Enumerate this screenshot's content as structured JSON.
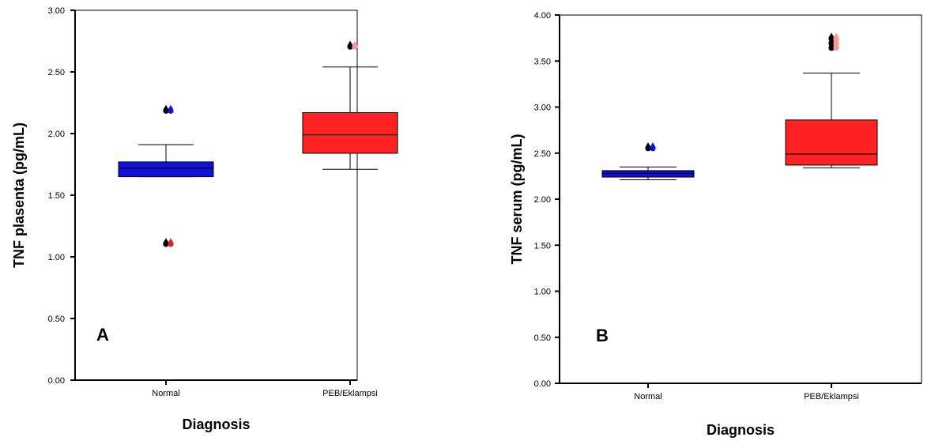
{
  "chart_data": [
    {
      "type": "box",
      "panel_label": "A",
      "ylabel": "TNF plasenta (pg/mL)",
      "xlabel": "Diagnosis",
      "ylim": [
        0,
        3
      ],
      "yticks": [
        0,
        0.5,
        1,
        1.5,
        2,
        2.5,
        3
      ],
      "ytick_labels": [
        "0.00",
        "0.50",
        "1.00",
        "1.50",
        "2.00",
        "2.50",
        "3.00"
      ],
      "categories": [
        "Normal",
        "PEB/Eklampsi"
      ],
      "boxes": [
        {
          "category": "Normal",
          "color": "#1111dd",
          "whisker_low": 1.65,
          "q1": 1.65,
          "median": 1.72,
          "q3": 1.77,
          "whisker_high": 1.91,
          "outliers": [
            2.19,
            1.11
          ]
        },
        {
          "category": "PEB/Eklampsi",
          "color": "#ff2222",
          "whisker_low": 1.71,
          "q1": 1.84,
          "median": 1.99,
          "q3": 2.17,
          "whisker_high": 2.54,
          "outliers": [
            2.71
          ]
        }
      ]
    },
    {
      "type": "box",
      "panel_label": "B",
      "ylabel": "TNF serum (pg/mL)",
      "xlabel": "Diagnosis",
      "ylim": [
        0,
        4
      ],
      "yticks": [
        0,
        0.5,
        1,
        1.5,
        2,
        2.5,
        3,
        3.5,
        4
      ],
      "ytick_labels": [
        "0.00",
        "0.50",
        "1.00",
        "1.50",
        "2.00",
        "2.50",
        "3.00",
        "3.50",
        "4.00"
      ],
      "categories": [
        "Normal",
        "PEB/Eklampsi"
      ],
      "boxes": [
        {
          "category": "Normal",
          "color": "#1111dd",
          "whisker_low": 2.21,
          "q1": 2.24,
          "median": 2.28,
          "q3": 2.31,
          "whisker_high": 2.35,
          "outliers": [
            2.56
          ]
        },
        {
          "category": "PEB/Eklampsi",
          "color": "#ff2222",
          "whisker_low": 2.34,
          "q1": 2.37,
          "median": 2.49,
          "q3": 2.86,
          "whisker_high": 3.37,
          "outliers": [
            3.65,
            3.7,
            3.75
          ]
        }
      ]
    }
  ]
}
